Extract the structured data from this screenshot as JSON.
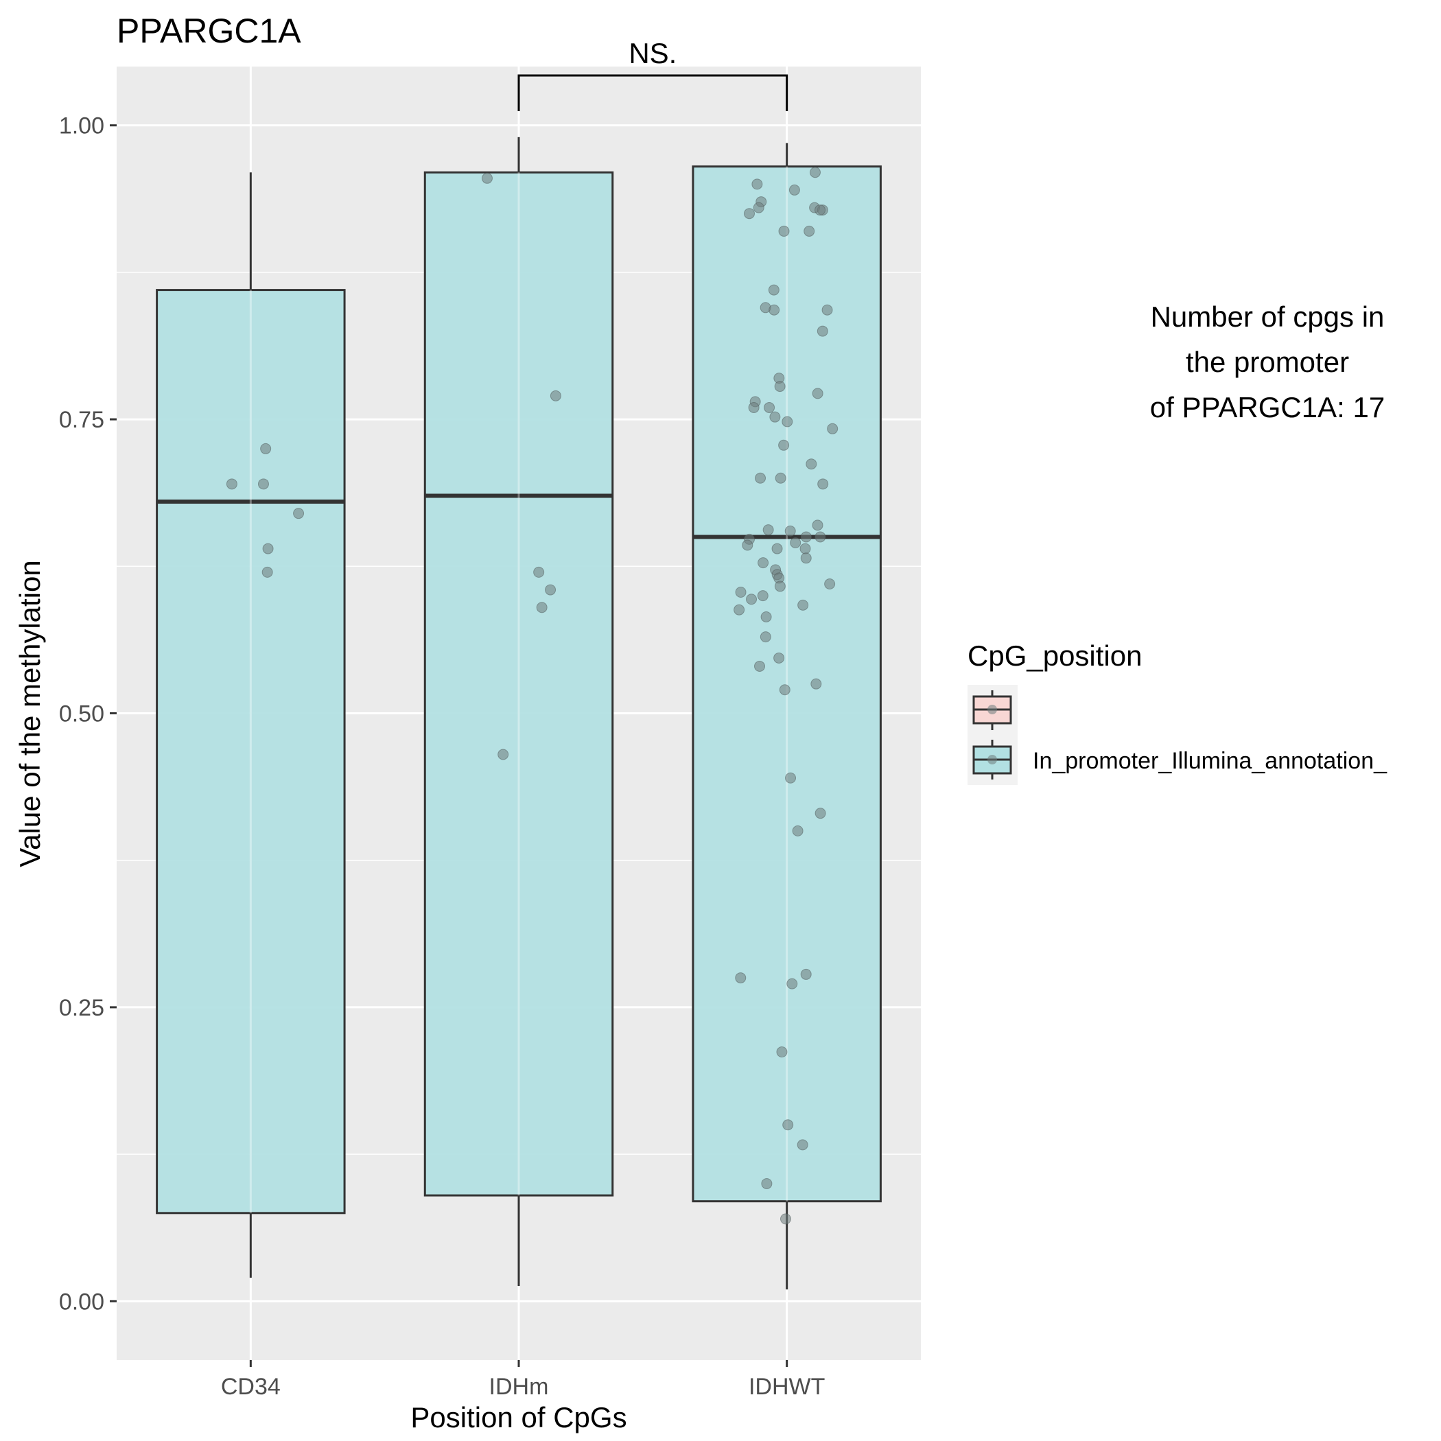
{
  "chart_data": {
    "type": "box",
    "title": "PPARGC1A",
    "xlabel": "Position of CpGs",
    "ylabel": "Value of the methylation",
    "ylim": [
      -0.05,
      1.05
    ],
    "yticks": [
      "0.00",
      "0.25",
      "0.50",
      "0.75",
      "1.00"
    ],
    "ytick_values": [
      0.0,
      0.25,
      0.5,
      0.75,
      1.0
    ],
    "grid": true,
    "categories": [
      "CD34",
      "IDHm",
      "IDHWT"
    ],
    "series": [
      {
        "name": "In_promoter_Illumina_annotation_",
        "boxes": [
          {
            "category": "CD34",
            "whisker_low": 0.02,
            "q1": 0.075,
            "median": 0.68,
            "q3": 0.86,
            "whisker_high": 0.96
          },
          {
            "category": "IDHm",
            "whisker_low": 0.013,
            "q1": 0.09,
            "median": 0.685,
            "q3": 0.96,
            "whisker_high": 0.99
          },
          {
            "category": "IDHWT",
            "whisker_low": 0.01,
            "q1": 0.085,
            "median": 0.65,
            "q3": 0.965,
            "whisker_high": 0.985
          }
        ],
        "points": {
          "CD34": [
            0.725,
            0.695,
            0.695,
            0.67,
            0.64,
            0.62
          ],
          "IDHm": [
            0.955,
            0.77,
            0.62,
            0.605,
            0.59,
            0.465
          ],
          "IDHWT": [
            0.96,
            0.95,
            0.945,
            0.935,
            0.93,
            0.93,
            0.928,
            0.928,
            0.925,
            0.91,
            0.91,
            0.86,
            0.845,
            0.843,
            0.843,
            0.825,
            0.785,
            0.778,
            0.772,
            0.765,
            0.76,
            0.76,
            0.752,
            0.748,
            0.742,
            0.728,
            0.712,
            0.7,
            0.7,
            0.695,
            0.66,
            0.656,
            0.655,
            0.65,
            0.65,
            0.648,
            0.645,
            0.643,
            0.64,
            0.64,
            0.632,
            0.628,
            0.622,
            0.618,
            0.615,
            0.61,
            0.608,
            0.603,
            0.6,
            0.597,
            0.592,
            0.588,
            0.582,
            0.565,
            0.547,
            0.54,
            0.525,
            0.52,
            0.445,
            0.415,
            0.4,
            0.278,
            0.275,
            0.27,
            0.212,
            0.15,
            0.133,
            0.1,
            0.07
          ]
        }
      }
    ],
    "legend": {
      "title": "CpG_position",
      "placement": "right",
      "entries": [
        {
          "label": "",
          "fill": "#F8D7D4"
        },
        {
          "label": "In_promoter_Illumina_annotation_",
          "fill": "#B2E0E2"
        }
      ]
    },
    "annotation": {
      "bracket_from": "IDHm",
      "bracket_to": "IDHWT",
      "label": "NS."
    },
    "note_lines": [
      "Number of cpgs in",
      "the promoter",
      "of PPARGC1A: 17"
    ]
  },
  "colors": {
    "panel": "#EBEBEB",
    "grid": "#FFFFFF",
    "box_fill": "#B2E0E2",
    "box_stroke": "#333333",
    "point": "#6E7B7B"
  }
}
